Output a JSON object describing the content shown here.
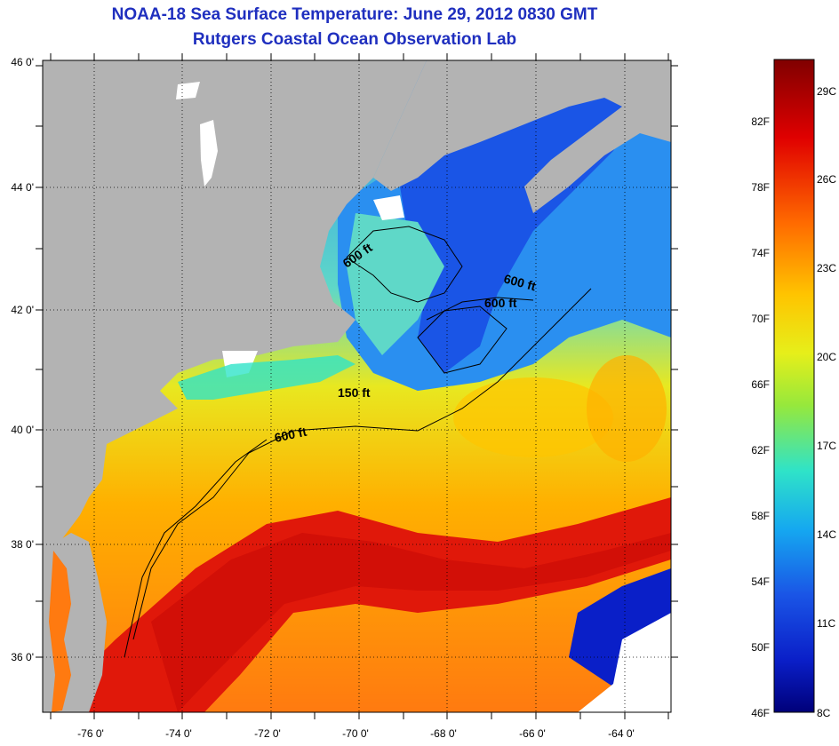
{
  "title": "NOAA-18 Sea Surface Temperature:  June 29, 2012 0830 GMT",
  "subtitle": "Rutgers Coastal Ocean Observation Lab",
  "map": {
    "lat_ticks": [
      "46 0'",
      "44 0'",
      "42 0'",
      "40 0'",
      "38 0'",
      "36 0'"
    ],
    "lon_ticks": [
      "-76 0'",
      "-74 0'",
      "-72 0'",
      "-70 0'",
      "-68 0'",
      "-66 0'",
      "-64 0'"
    ],
    "contour_labels": [
      "600 ft",
      "600 ft",
      "600 ft",
      "150 ft",
      "600 ft"
    ],
    "colors": {
      "land": "#b3b3b3",
      "cloud": "#ffffff",
      "gulf_stream": "#e0180a",
      "shelf_water": "#e8e000",
      "cold_water": "#1840d8"
    }
  },
  "colorbar": {
    "fahrenheit": [
      "82F",
      "78F",
      "74F",
      "70F",
      "66F",
      "62F",
      "58F",
      "54F",
      "50F",
      "46F"
    ],
    "celsius": [
      "29C",
      "26C",
      "23C",
      "20C",
      "17C",
      "14C",
      "11C",
      "8C"
    ],
    "stops": [
      "#800000",
      "#e00000",
      "#ff6a00",
      "#ffc400",
      "#e6ef1a",
      "#96e83c",
      "#2fe3c8",
      "#15a8f0",
      "#1a55e6",
      "#0a1fc8",
      "#00007a"
    ]
  }
}
